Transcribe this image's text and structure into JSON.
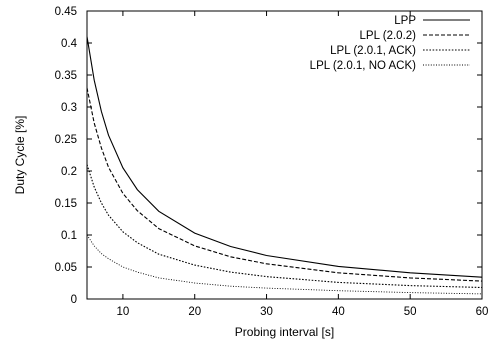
{
  "chart_data": {
    "type": "line",
    "xlabel": "Probing interval [s]",
    "ylabel": "Duty Cycle [%]",
    "xlim": [
      5,
      60
    ],
    "ylim": [
      0,
      0.45
    ],
    "x_ticks": [
      10,
      20,
      30,
      40,
      50,
      60
    ],
    "y_ticks": [
      0,
      0.05,
      0.1,
      0.15,
      0.2,
      0.25,
      0.3,
      0.35,
      0.4,
      0.45
    ],
    "x_tick_labels": [
      "10",
      "20",
      "30",
      "40",
      "50",
      "60"
    ],
    "y_tick_labels": [
      "0",
      "0.05",
      "0.1",
      "0.15",
      "0.2",
      "0.25",
      "0.3",
      "0.35",
      "0.4",
      "0.45"
    ],
    "grid": false,
    "legend_position": "top-right",
    "x": [
      5,
      6,
      7,
      8,
      10,
      12,
      15,
      20,
      25,
      30,
      40,
      50,
      60
    ],
    "series": [
      {
        "name": "LPP",
        "style": "solid",
        "values": [
          0.41,
          0.342,
          0.293,
          0.256,
          0.205,
          0.171,
          0.137,
          0.103,
          0.082,
          0.068,
          0.051,
          0.041,
          0.034
        ]
      },
      {
        "name": "LPL (2.0.2)",
        "style": "dashed",
        "values": [
          0.33,
          0.275,
          0.236,
          0.206,
          0.165,
          0.138,
          0.11,
          0.083,
          0.066,
          0.055,
          0.041,
          0.033,
          0.028
        ]
      },
      {
        "name": "LPL (2.0.1, ACK)",
        "style": "dotted",
        "values": [
          0.21,
          0.175,
          0.15,
          0.131,
          0.105,
          0.088,
          0.07,
          0.053,
          0.042,
          0.035,
          0.026,
          0.021,
          0.018
        ]
      },
      {
        "name": "LPL (2.0.1, NO ACK)",
        "style": "fine-dotted",
        "values": [
          0.1,
          0.083,
          0.071,
          0.063,
          0.05,
          0.042,
          0.033,
          0.025,
          0.02,
          0.017,
          0.013,
          0.01,
          0.008
        ]
      }
    ]
  }
}
